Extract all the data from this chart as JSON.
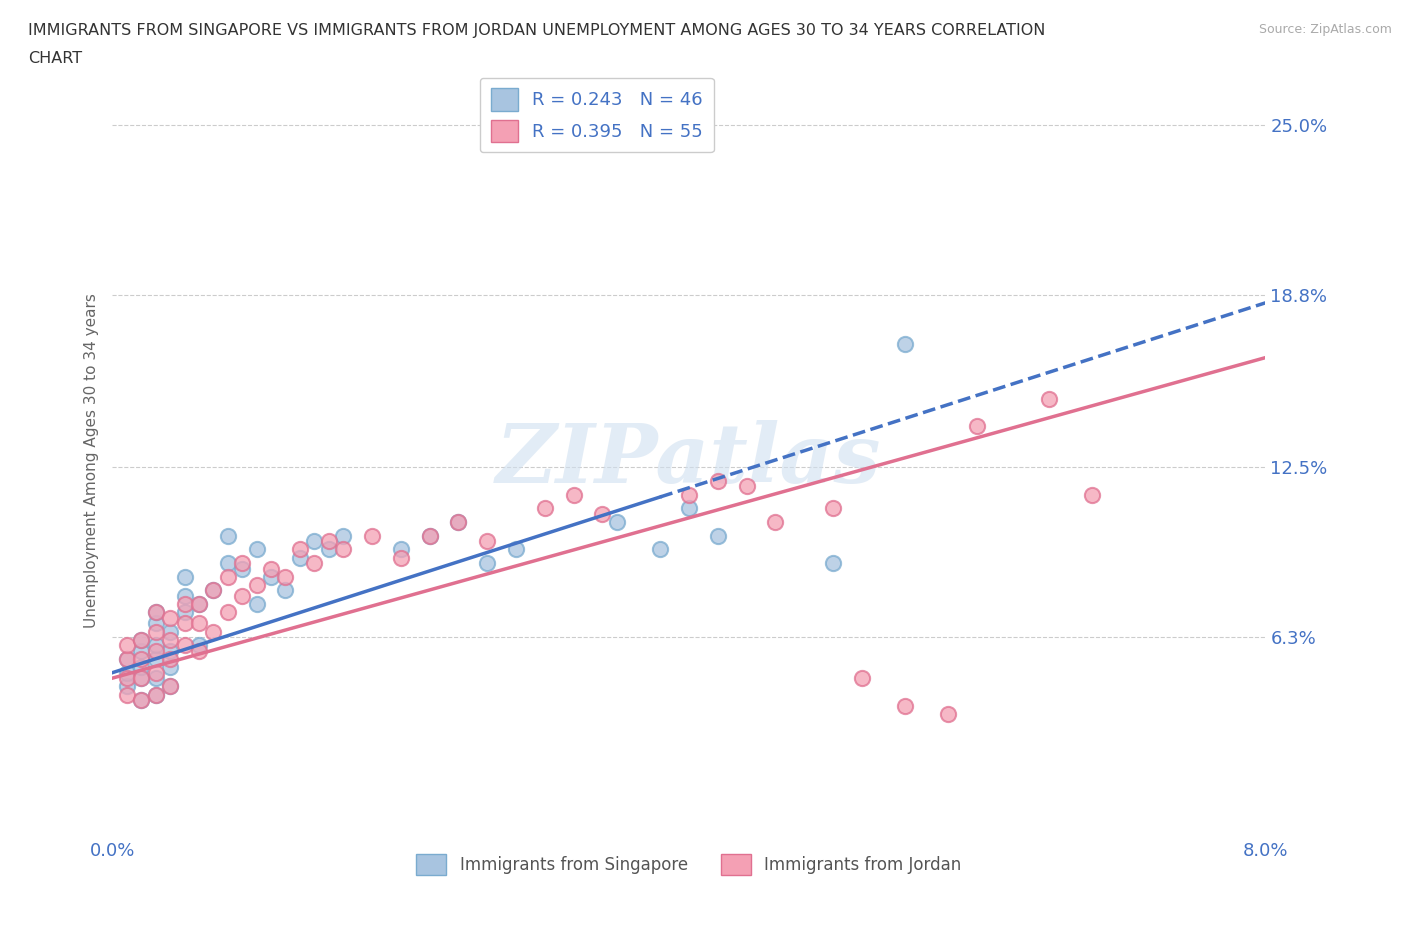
{
  "title": "IMMIGRANTS FROM SINGAPORE VS IMMIGRANTS FROM JORDAN UNEMPLOYMENT AMONG AGES 30 TO 34 YEARS CORRELATION\nCHART",
  "source_text": "Source: ZipAtlas.com",
  "ylabel": "Unemployment Among Ages 30 to 34 years",
  "xlim": [
    0.0,
    0.08
  ],
  "ylim": [
    -0.01,
    0.265
  ],
  "yticks": [
    0.063,
    0.125,
    0.188,
    0.25
  ],
  "ytick_labels": [
    "6.3%",
    "12.5%",
    "18.8%",
    "25.0%"
  ],
  "xticks": [
    0.0,
    0.02,
    0.04,
    0.06,
    0.08
  ],
  "xtick_labels": [
    "0.0%",
    "",
    "",
    "",
    "8.0%"
  ],
  "singapore_color": "#a8c4e0",
  "singapore_edge_color": "#7aabcf",
  "jordan_color": "#f4a0b4",
  "jordan_edge_color": "#e07090",
  "singapore_R": 0.243,
  "singapore_N": 46,
  "jordan_R": 0.395,
  "jordan_N": 55,
  "trend_blue_color": "#4472c4",
  "trend_pink_color": "#e07090",
  "axis_label_color": "#4472c4",
  "watermark_text": "ZIPatlas",
  "singapore_scatter_x": [
    0.001,
    0.001,
    0.001,
    0.002,
    0.002,
    0.002,
    0.002,
    0.002,
    0.003,
    0.003,
    0.003,
    0.003,
    0.003,
    0.003,
    0.004,
    0.004,
    0.004,
    0.004,
    0.005,
    0.005,
    0.005,
    0.006,
    0.006,
    0.007,
    0.008,
    0.008,
    0.009,
    0.01,
    0.01,
    0.011,
    0.012,
    0.013,
    0.014,
    0.015,
    0.016,
    0.02,
    0.022,
    0.024,
    0.026,
    0.028,
    0.035,
    0.038,
    0.04,
    0.042,
    0.05,
    0.055
  ],
  "singapore_scatter_y": [
    0.045,
    0.05,
    0.055,
    0.04,
    0.048,
    0.052,
    0.058,
    0.062,
    0.042,
    0.048,
    0.055,
    0.06,
    0.068,
    0.072,
    0.045,
    0.052,
    0.058,
    0.065,
    0.072,
    0.078,
    0.085,
    0.06,
    0.075,
    0.08,
    0.09,
    0.1,
    0.088,
    0.075,
    0.095,
    0.085,
    0.08,
    0.092,
    0.098,
    0.095,
    0.1,
    0.095,
    0.1,
    0.105,
    0.09,
    0.095,
    0.105,
    0.095,
    0.11,
    0.1,
    0.09,
    0.17
  ],
  "jordan_scatter_x": [
    0.001,
    0.001,
    0.001,
    0.001,
    0.002,
    0.002,
    0.002,
    0.002,
    0.003,
    0.003,
    0.003,
    0.003,
    0.003,
    0.004,
    0.004,
    0.004,
    0.004,
    0.005,
    0.005,
    0.005,
    0.006,
    0.006,
    0.006,
    0.007,
    0.007,
    0.008,
    0.008,
    0.009,
    0.009,
    0.01,
    0.011,
    0.012,
    0.013,
    0.014,
    0.015,
    0.016,
    0.018,
    0.02,
    0.022,
    0.024,
    0.026,
    0.03,
    0.032,
    0.034,
    0.04,
    0.042,
    0.044,
    0.046,
    0.05,
    0.052,
    0.055,
    0.058,
    0.06,
    0.065,
    0.068
  ],
  "jordan_scatter_y": [
    0.042,
    0.048,
    0.055,
    0.06,
    0.04,
    0.048,
    0.055,
    0.062,
    0.042,
    0.05,
    0.058,
    0.065,
    0.072,
    0.045,
    0.055,
    0.062,
    0.07,
    0.06,
    0.068,
    0.075,
    0.058,
    0.068,
    0.075,
    0.065,
    0.08,
    0.072,
    0.085,
    0.078,
    0.09,
    0.082,
    0.088,
    0.085,
    0.095,
    0.09,
    0.098,
    0.095,
    0.1,
    0.092,
    0.1,
    0.105,
    0.098,
    0.11,
    0.115,
    0.108,
    0.115,
    0.12,
    0.118,
    0.105,
    0.11,
    0.048,
    0.038,
    0.035,
    0.14,
    0.15,
    0.115
  ],
  "sg_trend_x0": 0.0,
  "sg_trend_y0": 0.05,
  "sg_trend_x1": 0.08,
  "sg_trend_y1": 0.185,
  "jo_trend_x0": 0.0,
  "jo_trend_y0": 0.048,
  "jo_trend_x1": 0.08,
  "jo_trend_y1": 0.165
}
